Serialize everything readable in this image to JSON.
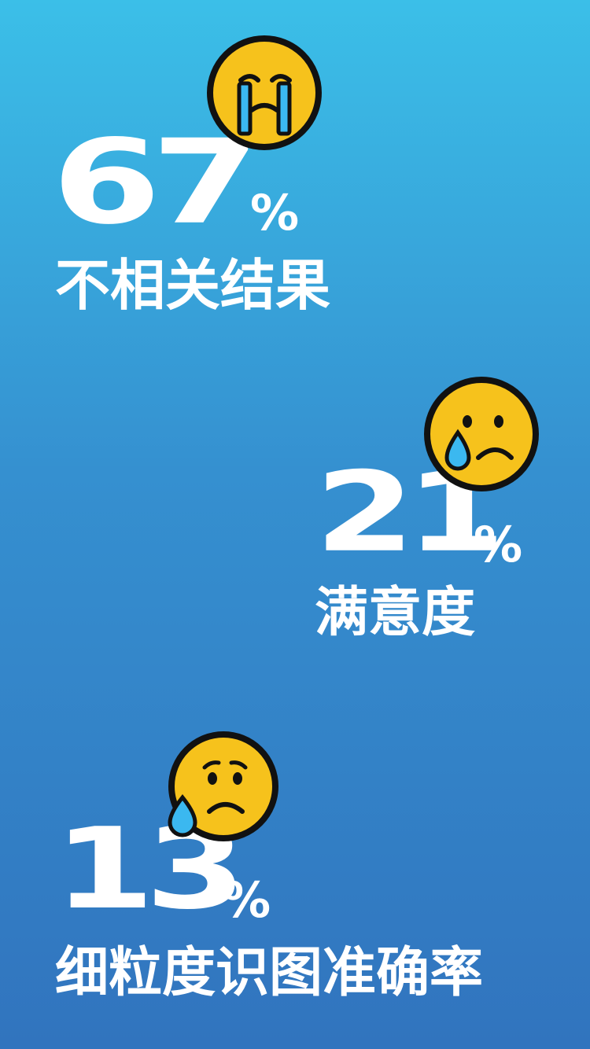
{
  "stats": [
    {
      "value": "67",
      "unit": "%",
      "label": "不相关结果",
      "emoji": "loudly-crying-face-icon"
    },
    {
      "value": "21",
      "unit": "%",
      "label": "满意度",
      "emoji": "crying-face-icon"
    },
    {
      "value": "13",
      "unit": "%",
      "label": "细粒度识图准确率",
      "emoji": "sad-sweat-face-icon"
    }
  ],
  "colors": {
    "background_top": "#3bbfe8",
    "background_bottom": "#3174be",
    "emoji_yellow": "#f6c21c",
    "emoji_outline": "#111111",
    "tear_blue": "#3bb8f0"
  }
}
